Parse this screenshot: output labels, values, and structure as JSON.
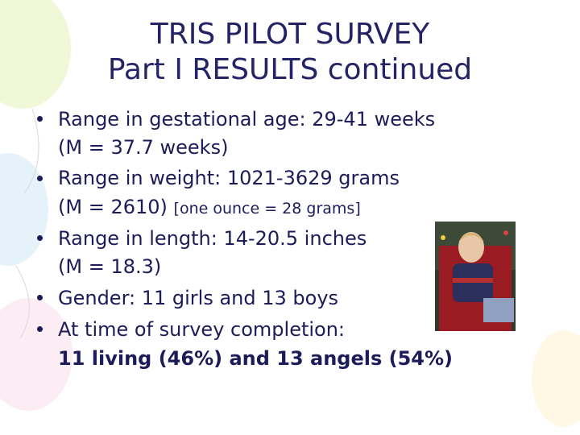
{
  "title": [
    "TRIS PILOT SURVEY",
    "Part I RESULTS continued"
  ],
  "bullets": [
    {
      "lines": [
        "Range in gestational age: 29-41 weeks",
        "(M = 37.7 weeks)"
      ]
    },
    {
      "lines": [
        "Range in weight: 1021-3629 grams",
        "(M = 2610)"
      ],
      "note": "[one ounce = 28 grams]"
    },
    {
      "lines": [
        "Range in length: 14-20.5 inches",
        "(M = 18.3)"
      ]
    },
    {
      "lines": [
        "Gender: 11 girls and 13 boys"
      ]
    },
    {
      "lines": [
        "At time of survey completion:",
        "11 living (46%) and 13 angels (54%)"
      ]
    }
  ]
}
